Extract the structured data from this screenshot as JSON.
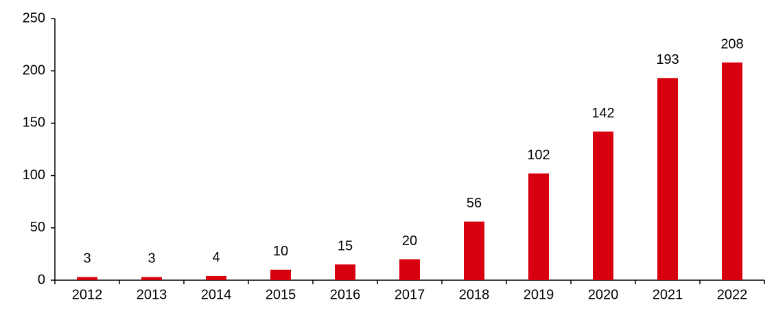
{
  "chart_data": {
    "type": "bar",
    "categories": [
      "2012",
      "2013",
      "2014",
      "2015",
      "2016",
      "2017",
      "2018",
      "2019",
      "2020",
      "2021",
      "2022"
    ],
    "values": [
      3,
      3,
      4,
      10,
      15,
      20,
      56,
      102,
      142,
      193,
      208
    ],
    "color": "#d7000f",
    "ylim": [
      0,
      250
    ],
    "yticks": [
      0,
      50,
      100,
      150,
      200,
      250
    ],
    "grid": false
  }
}
